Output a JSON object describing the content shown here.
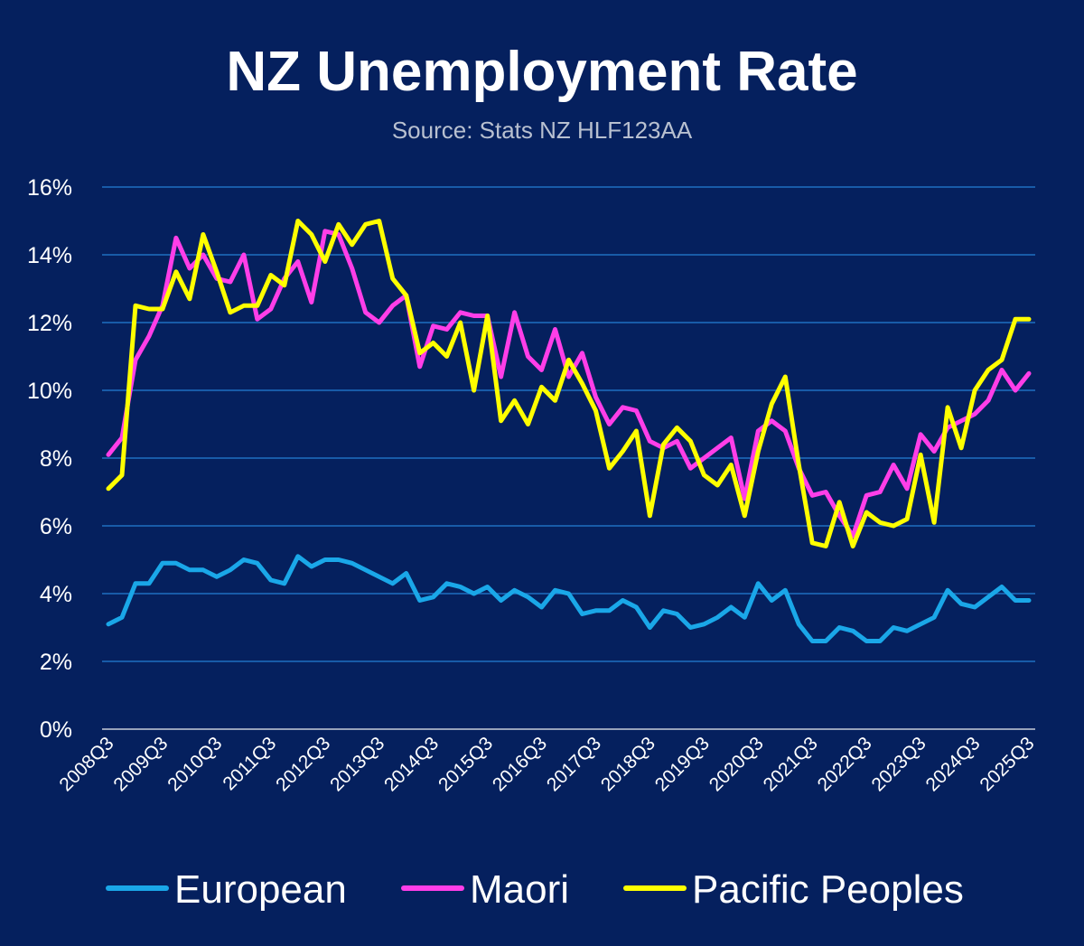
{
  "chart_data": {
    "type": "line",
    "title": "NZ Unemployment Rate",
    "subtitle": "Source: Stats NZ HLF123AA",
    "xlabel": "",
    "ylabel": "",
    "ylim": [
      0,
      16
    ],
    "yticks": [
      0,
      2,
      4,
      6,
      8,
      10,
      12,
      14,
      16
    ],
    "ytick_labels": [
      "0%",
      "2%",
      "4%",
      "6%",
      "8%",
      "10%",
      "12%",
      "14%",
      "16%"
    ],
    "x_tick_labels": [
      "2008Q3",
      "2009Q3",
      "2010Q3",
      "2011Q3",
      "2012Q3",
      "2013Q3",
      "2014Q3",
      "2015Q3",
      "2016Q3",
      "2017Q3",
      "2018Q3",
      "2019Q3",
      "2020Q3",
      "2021Q3",
      "2022Q3",
      "2023Q3",
      "2024Q3",
      "2025Q3"
    ],
    "grid": true,
    "legend_position": "bottom",
    "series": [
      {
        "name": "European",
        "color": "#1aa7e8",
        "values": [
          3.1,
          3.3,
          4.3,
          4.3,
          4.9,
          4.9,
          4.7,
          4.7,
          4.5,
          4.7,
          5.0,
          4.9,
          4.4,
          4.3,
          5.1,
          4.8,
          5.0,
          5.0,
          4.9,
          4.7,
          4.5,
          4.3,
          4.6,
          3.8,
          3.9,
          4.3,
          4.2,
          4.0,
          4.2,
          3.8,
          4.1,
          3.9,
          3.6,
          4.1,
          4.0,
          3.4,
          3.5,
          3.5,
          3.8,
          3.6,
          3.0,
          3.5,
          3.4,
          3.0,
          3.1,
          3.3,
          3.6,
          3.3,
          4.3,
          3.8,
          4.1,
          3.1,
          2.6,
          2.6,
          3.0,
          2.9,
          2.6,
          2.6,
          3.0,
          2.9,
          3.1,
          3.3,
          4.1,
          3.7,
          3.6,
          3.9,
          4.2,
          3.8,
          3.8
        ]
      },
      {
        "name": "Maori",
        "color": "#ff3ee8",
        "values": [
          8.1,
          8.6,
          10.9,
          11.6,
          12.5,
          14.5,
          13.6,
          14.0,
          13.3,
          13.2,
          14.0,
          12.1,
          12.4,
          13.3,
          13.8,
          12.6,
          14.7,
          14.6,
          13.6,
          12.3,
          12.0,
          12.5,
          12.8,
          10.7,
          11.9,
          11.8,
          12.3,
          12.2,
          12.2,
          10.4,
          12.3,
          11.0,
          10.6,
          11.8,
          10.4,
          11.1,
          9.8,
          9.0,
          9.5,
          9.4,
          8.5,
          8.3,
          8.5,
          7.7,
          8.0,
          8.3,
          8.6,
          6.8,
          8.8,
          9.1,
          8.8,
          7.7,
          6.9,
          7.0,
          6.3,
          5.7,
          6.9,
          7.0,
          7.8,
          7.1,
          8.7,
          8.2,
          8.9,
          9.1,
          9.3,
          9.7,
          10.6,
          10.0,
          10.5
        ]
      },
      {
        "name": "Pacific Peoples",
        "color": "#ffff00",
        "values": [
          7.1,
          7.5,
          12.5,
          12.4,
          12.4,
          13.5,
          12.7,
          14.6,
          13.5,
          12.3,
          12.5,
          12.5,
          13.4,
          13.1,
          15.0,
          14.6,
          13.8,
          14.9,
          14.3,
          14.9,
          15.0,
          13.3,
          12.8,
          11.1,
          11.4,
          11.0,
          12.0,
          10.0,
          12.2,
          9.1,
          9.7,
          9.0,
          10.1,
          9.7,
          10.9,
          10.2,
          9.4,
          7.7,
          8.2,
          8.8,
          6.3,
          8.4,
          8.9,
          8.5,
          7.5,
          7.2,
          7.8,
          6.3,
          8.2,
          9.6,
          10.4,
          7.8,
          5.5,
          5.4,
          6.7,
          5.4,
          6.4,
          6.1,
          6.0,
          6.2,
          8.1,
          6.1,
          9.5,
          8.3,
          10.0,
          10.6,
          10.9,
          12.1,
          12.1
        ]
      }
    ]
  }
}
